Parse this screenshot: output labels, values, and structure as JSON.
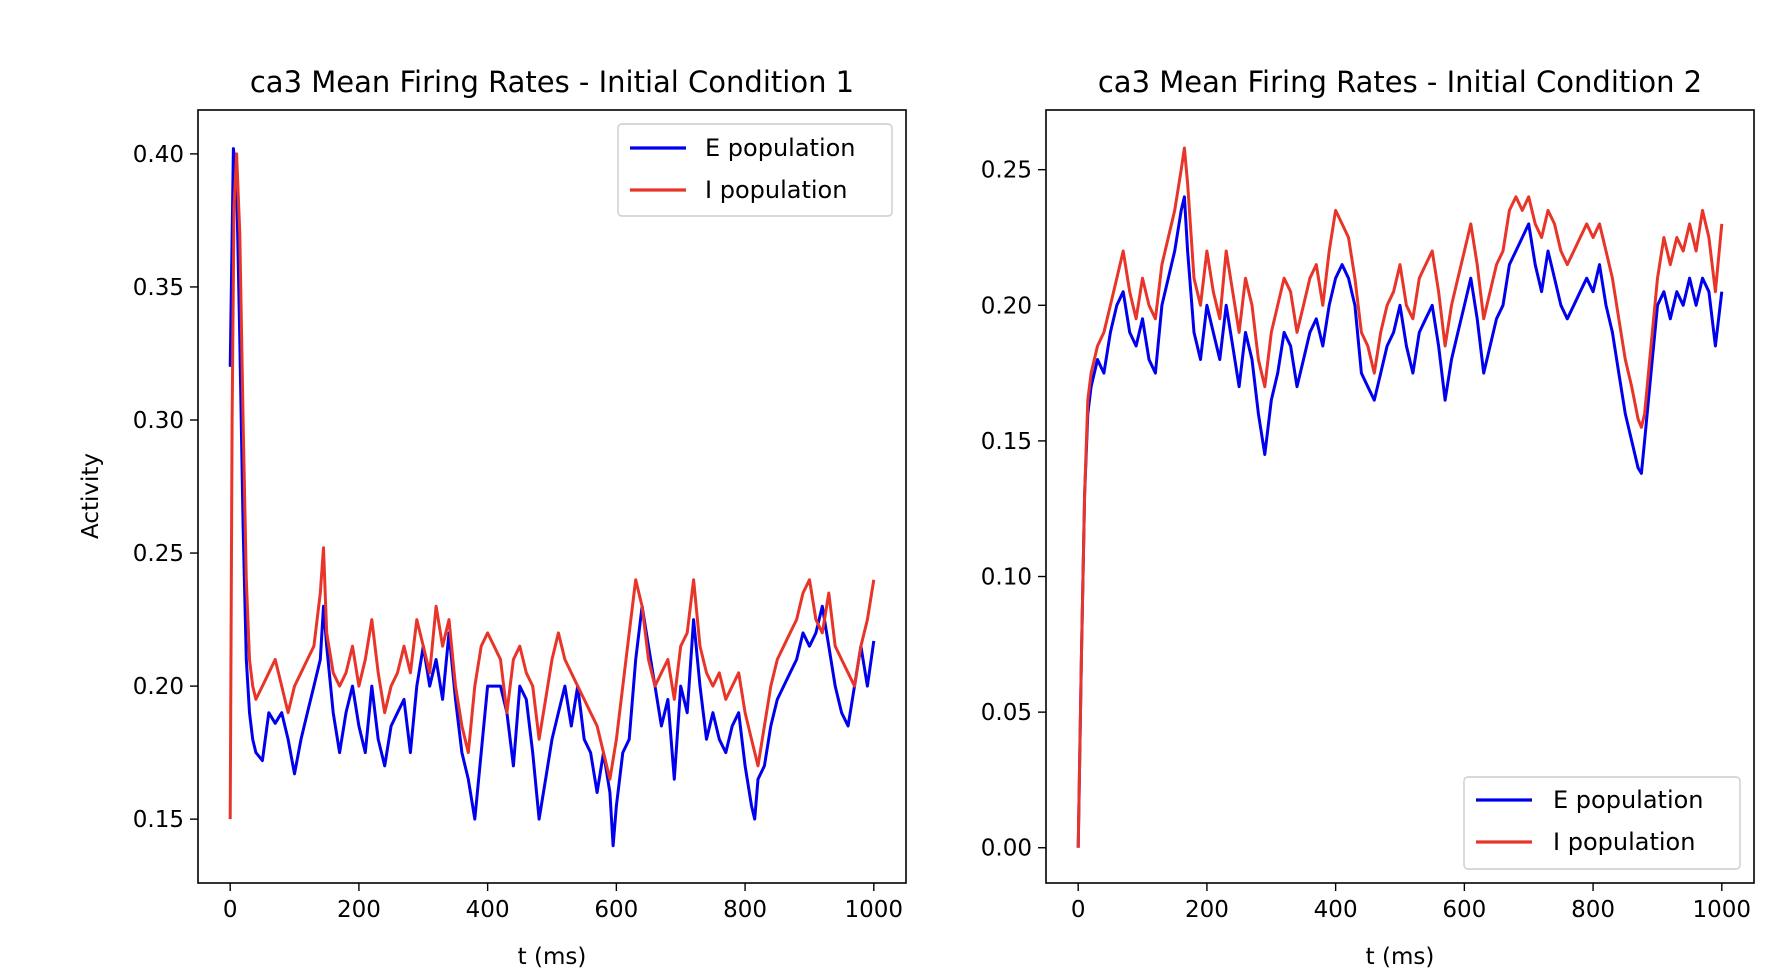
{
  "colors": {
    "e": "#0000ee",
    "i": "#e8352a"
  },
  "chart_data": [
    {
      "type": "line",
      "title": "ca3 Mean Firing Rates - Initial Condition 1",
      "xlabel": "t (ms)",
      "ylabel": "Activity",
      "xlim": [
        -50,
        1050
      ],
      "ylim": [
        0.126,
        0.4165
      ],
      "xticks": [
        0,
        200,
        400,
        600,
        800,
        1000
      ],
      "xtick_labels": [
        "0",
        "200",
        "400",
        "600",
        "800",
        "1000"
      ],
      "yticks": [
        0.15,
        0.2,
        0.25,
        0.3,
        0.35,
        0.4
      ],
      "ytick_labels": [
        "0.15",
        "0.20",
        "0.25",
        "0.30",
        "0.35",
        "0.40"
      ],
      "legend_position": "top-right",
      "grid": false,
      "series": [
        {
          "name": "E population",
          "color": "#0000ee",
          "x": [
            0,
            5,
            10,
            15,
            20,
            25,
            30,
            35,
            40,
            50,
            60,
            70,
            80,
            90,
            100,
            110,
            120,
            130,
            140,
            145,
            150,
            160,
            170,
            180,
            190,
            200,
            210,
            220,
            230,
            240,
            250,
            260,
            270,
            280,
            290,
            300,
            310,
            320,
            330,
            340,
            350,
            360,
            370,
            380,
            390,
            400,
            410,
            420,
            430,
            440,
            450,
            460,
            470,
            480,
            490,
            500,
            510,
            520,
            530,
            540,
            550,
            560,
            570,
            580,
            590,
            595,
            600,
            610,
            620,
            630,
            640,
            650,
            660,
            670,
            680,
            690,
            700,
            710,
            720,
            730,
            740,
            750,
            760,
            770,
            780,
            790,
            800,
            810,
            815,
            820,
            830,
            840,
            850,
            860,
            870,
            880,
            890,
            900,
            910,
            920,
            930,
            940,
            950,
            960,
            970,
            980,
            990,
            1000
          ],
          "y": [
            0.32,
            0.402,
            0.39,
            0.33,
            0.26,
            0.21,
            0.19,
            0.18,
            0.175,
            0.172,
            0.19,
            0.186,
            0.19,
            0.18,
            0.167,
            0.18,
            0.19,
            0.2,
            0.21,
            0.23,
            0.215,
            0.19,
            0.175,
            0.19,
            0.2,
            0.185,
            0.175,
            0.2,
            0.18,
            0.17,
            0.185,
            0.19,
            0.195,
            0.175,
            0.2,
            0.215,
            0.2,
            0.21,
            0.195,
            0.22,
            0.195,
            0.175,
            0.165,
            0.15,
            0.175,
            0.2,
            0.2,
            0.2,
            0.19,
            0.17,
            0.2,
            0.195,
            0.175,
            0.15,
            0.165,
            0.18,
            0.19,
            0.2,
            0.185,
            0.2,
            0.18,
            0.175,
            0.16,
            0.175,
            0.16,
            0.14,
            0.155,
            0.175,
            0.18,
            0.21,
            0.23,
            0.215,
            0.2,
            0.185,
            0.195,
            0.165,
            0.2,
            0.19,
            0.225,
            0.2,
            0.18,
            0.19,
            0.18,
            0.175,
            0.185,
            0.19,
            0.17,
            0.155,
            0.15,
            0.165,
            0.17,
            0.185,
            0.195,
            0.2,
            0.205,
            0.21,
            0.22,
            0.215,
            0.22,
            0.23,
            0.215,
            0.2,
            0.19,
            0.185,
            0.2,
            0.215,
            0.2,
            0.217
          ]
        },
        {
          "name": "I population",
          "color": "#e8352a",
          "x": [
            0,
            3,
            6,
            10,
            15,
            20,
            25,
            30,
            35,
            40,
            50,
            60,
            70,
            80,
            90,
            100,
            110,
            120,
            130,
            140,
            145,
            150,
            160,
            170,
            180,
            190,
            200,
            210,
            220,
            230,
            240,
            250,
            260,
            270,
            280,
            290,
            300,
            310,
            320,
            330,
            340,
            350,
            360,
            370,
            380,
            390,
            400,
            410,
            420,
            430,
            440,
            450,
            460,
            470,
            480,
            490,
            500,
            510,
            520,
            530,
            540,
            550,
            560,
            570,
            580,
            590,
            600,
            610,
            620,
            630,
            640,
            650,
            660,
            670,
            680,
            690,
            700,
            710,
            720,
            730,
            740,
            750,
            760,
            770,
            780,
            790,
            800,
            810,
            820,
            830,
            840,
            850,
            860,
            870,
            880,
            890,
            900,
            910,
            920,
            930,
            940,
            950,
            960,
            970,
            980,
            990,
            1000
          ],
          "y": [
            0.15,
            0.3,
            0.38,
            0.4,
            0.37,
            0.3,
            0.24,
            0.21,
            0.2,
            0.195,
            0.2,
            0.205,
            0.21,
            0.2,
            0.19,
            0.2,
            0.205,
            0.21,
            0.215,
            0.235,
            0.252,
            0.22,
            0.205,
            0.2,
            0.205,
            0.215,
            0.2,
            0.21,
            0.225,
            0.205,
            0.19,
            0.2,
            0.205,
            0.215,
            0.205,
            0.225,
            0.215,
            0.205,
            0.23,
            0.215,
            0.225,
            0.2,
            0.185,
            0.175,
            0.2,
            0.215,
            0.22,
            0.215,
            0.21,
            0.19,
            0.21,
            0.215,
            0.205,
            0.2,
            0.18,
            0.195,
            0.21,
            0.22,
            0.21,
            0.205,
            0.2,
            0.195,
            0.19,
            0.185,
            0.175,
            0.165,
            0.18,
            0.2,
            0.22,
            0.24,
            0.23,
            0.21,
            0.2,
            0.205,
            0.21,
            0.195,
            0.215,
            0.22,
            0.24,
            0.215,
            0.205,
            0.2,
            0.205,
            0.195,
            0.2,
            0.205,
            0.19,
            0.18,
            0.17,
            0.185,
            0.2,
            0.21,
            0.215,
            0.22,
            0.225,
            0.235,
            0.24,
            0.225,
            0.22,
            0.235,
            0.215,
            0.21,
            0.205,
            0.2,
            0.215,
            0.225,
            0.24
          ]
        }
      ]
    },
    {
      "type": "line",
      "title": "ca3 Mean Firing Rates - Initial Condition 2",
      "xlabel": "t (ms)",
      "ylabel": "",
      "xlim": [
        -50,
        1050
      ],
      "ylim": [
        -0.013,
        0.272
      ],
      "xticks": [
        0,
        200,
        400,
        600,
        800,
        1000
      ],
      "xtick_labels": [
        "0",
        "200",
        "400",
        "600",
        "800",
        "1000"
      ],
      "yticks": [
        0,
        0.05,
        0.1,
        0.15,
        0.2,
        0.25
      ],
      "ytick_labels": [
        "0.00",
        "0.05",
        "0.10",
        "0.15",
        "0.20",
        "0.25"
      ],
      "legend_position": "bottom-right",
      "grid": false,
      "series": [
        {
          "name": "E population",
          "color": "#0000ee",
          "x": [
            0,
            5,
            10,
            15,
            20,
            30,
            40,
            50,
            60,
            70,
            80,
            90,
            100,
            110,
            120,
            130,
            140,
            150,
            160,
            165,
            170,
            180,
            190,
            200,
            210,
            220,
            230,
            240,
            250,
            260,
            270,
            280,
            290,
            300,
            310,
            320,
            330,
            340,
            350,
            360,
            370,
            380,
            390,
            400,
            410,
            420,
            430,
            440,
            450,
            460,
            470,
            480,
            490,
            500,
            510,
            520,
            530,
            540,
            550,
            560,
            570,
            580,
            590,
            600,
            610,
            620,
            630,
            640,
            650,
            660,
            670,
            680,
            690,
            700,
            710,
            720,
            730,
            740,
            750,
            760,
            770,
            780,
            790,
            800,
            810,
            820,
            830,
            840,
            850,
            860,
            870,
            875,
            880,
            890,
            900,
            910,
            920,
            930,
            940,
            950,
            960,
            970,
            980,
            990,
            1000
          ],
          "y": [
            0,
            0.07,
            0.13,
            0.16,
            0.17,
            0.18,
            0.175,
            0.19,
            0.2,
            0.205,
            0.19,
            0.185,
            0.195,
            0.18,
            0.175,
            0.2,
            0.21,
            0.22,
            0.235,
            0.24,
            0.22,
            0.19,
            0.18,
            0.2,
            0.19,
            0.18,
            0.2,
            0.185,
            0.17,
            0.19,
            0.18,
            0.16,
            0.145,
            0.165,
            0.175,
            0.19,
            0.185,
            0.17,
            0.18,
            0.19,
            0.195,
            0.185,
            0.2,
            0.21,
            0.215,
            0.21,
            0.2,
            0.175,
            0.17,
            0.165,
            0.175,
            0.185,
            0.19,
            0.2,
            0.185,
            0.175,
            0.19,
            0.195,
            0.2,
            0.185,
            0.165,
            0.18,
            0.19,
            0.2,
            0.21,
            0.195,
            0.175,
            0.185,
            0.195,
            0.2,
            0.215,
            0.22,
            0.225,
            0.23,
            0.215,
            0.205,
            0.22,
            0.21,
            0.2,
            0.195,
            0.2,
            0.205,
            0.21,
            0.205,
            0.215,
            0.2,
            0.19,
            0.175,
            0.16,
            0.15,
            0.14,
            0.138,
            0.15,
            0.175,
            0.2,
            0.205,
            0.195,
            0.205,
            0.2,
            0.21,
            0.2,
            0.21,
            0.205,
            0.185,
            0.205
          ]
        },
        {
          "name": "I population",
          "color": "#e8352a",
          "x": [
            0,
            5,
            10,
            15,
            20,
            30,
            40,
            50,
            60,
            70,
            80,
            90,
            100,
            110,
            120,
            130,
            140,
            150,
            160,
            165,
            170,
            180,
            190,
            200,
            210,
            220,
            230,
            240,
            250,
            260,
            270,
            280,
            290,
            300,
            310,
            320,
            330,
            340,
            350,
            360,
            370,
            380,
            390,
            400,
            410,
            420,
            430,
            440,
            450,
            460,
            470,
            480,
            490,
            500,
            510,
            520,
            530,
            540,
            550,
            560,
            570,
            580,
            590,
            600,
            610,
            620,
            630,
            640,
            650,
            660,
            670,
            680,
            690,
            700,
            710,
            720,
            730,
            740,
            750,
            760,
            770,
            780,
            790,
            800,
            810,
            820,
            830,
            840,
            850,
            860,
            870,
            875,
            880,
            890,
            900,
            910,
            920,
            930,
            940,
            950,
            960,
            970,
            980,
            990,
            1000
          ],
          "y": [
            0,
            0.07,
            0.13,
            0.165,
            0.175,
            0.185,
            0.19,
            0.2,
            0.21,
            0.22,
            0.205,
            0.195,
            0.21,
            0.2,
            0.195,
            0.215,
            0.225,
            0.235,
            0.25,
            0.258,
            0.245,
            0.21,
            0.2,
            0.22,
            0.205,
            0.195,
            0.22,
            0.205,
            0.19,
            0.21,
            0.2,
            0.18,
            0.17,
            0.19,
            0.2,
            0.21,
            0.205,
            0.19,
            0.2,
            0.21,
            0.215,
            0.2,
            0.22,
            0.235,
            0.23,
            0.225,
            0.21,
            0.19,
            0.185,
            0.175,
            0.19,
            0.2,
            0.205,
            0.215,
            0.2,
            0.195,
            0.21,
            0.215,
            0.22,
            0.205,
            0.185,
            0.2,
            0.21,
            0.22,
            0.23,
            0.215,
            0.195,
            0.205,
            0.215,
            0.22,
            0.235,
            0.24,
            0.235,
            0.24,
            0.23,
            0.225,
            0.235,
            0.23,
            0.22,
            0.215,
            0.22,
            0.225,
            0.23,
            0.225,
            0.23,
            0.22,
            0.21,
            0.195,
            0.18,
            0.17,
            0.158,
            0.155,
            0.16,
            0.185,
            0.21,
            0.225,
            0.215,
            0.225,
            0.22,
            0.23,
            0.22,
            0.235,
            0.225,
            0.205,
            0.23
          ]
        }
      ]
    }
  ]
}
